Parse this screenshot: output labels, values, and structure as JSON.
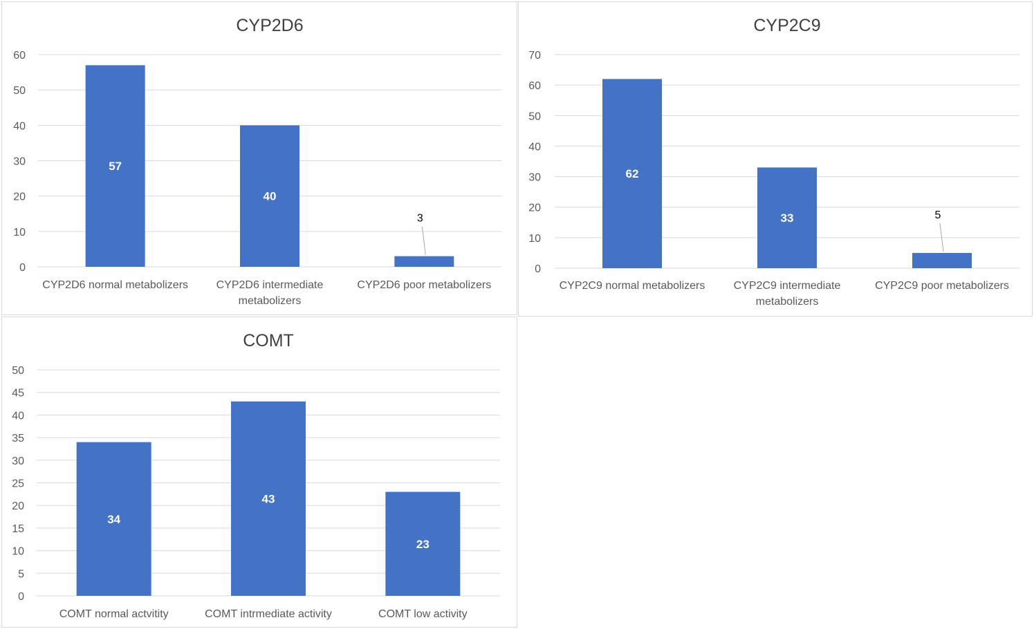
{
  "chart_data": [
    {
      "type": "bar",
      "title": "CYP2D6",
      "categories": [
        "CYP2D6 normal metabolizers",
        "CYP2D6 intermediate metabolizers",
        "CYP2D6 poor metabolizers"
      ],
      "values": [
        57,
        40,
        3
      ],
      "data_labels": [
        "57",
        "40",
        "3"
      ],
      "ylim": [
        0,
        60
      ],
      "yticks": [
        "0",
        "10",
        "20",
        "30",
        "40",
        "50",
        "60"
      ],
      "grid": true,
      "color": "#4472c4"
    },
    {
      "type": "bar",
      "title": "CYP2C9",
      "categories": [
        "CYP2C9 normal metabolizers",
        "CYP2C9 intermediate metabolizers",
        "CYP2C9 poor metabolizers"
      ],
      "values": [
        62,
        33,
        5
      ],
      "data_labels": [
        "62",
        "33",
        "5"
      ],
      "ylim": [
        0,
        70
      ],
      "yticks": [
        "0",
        "10",
        "20",
        "30",
        "40",
        "50",
        "60",
        "70"
      ],
      "grid": true,
      "color": "#4472c4"
    },
    {
      "type": "bar",
      "title": "COMT",
      "categories": [
        "COMT normal actvitity",
        "COMT intrmediate activity",
        "COMT low activity"
      ],
      "values": [
        34,
        43,
        23
      ],
      "data_labels": [
        "34",
        "43",
        "23"
      ],
      "ylim": [
        0,
        50
      ],
      "yticks": [
        "0",
        "5",
        "10",
        "15",
        "20",
        "25",
        "30",
        "35",
        "40",
        "45",
        "50"
      ],
      "grid": true,
      "color": "#4472c4"
    }
  ]
}
